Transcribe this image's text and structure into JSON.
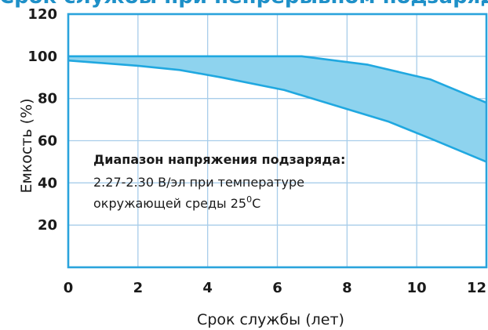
{
  "title": "Срок службы при непрерывном подзаряде",
  "chart_data": {
    "type": "area",
    "title": "Срок службы при непрерывном подзаряде",
    "xlabel": "Срок службы (лет)",
    "ylabel": "Емкость (%)",
    "xlim": [
      0,
      12
    ],
    "ylim": [
      0,
      120
    ],
    "x_ticks": [
      "0",
      "2",
      "4",
      "6",
      "8",
      "10",
      "12"
    ],
    "y_ticks": [
      "20",
      "40",
      "60",
      "80",
      "100",
      "120"
    ],
    "grid": true,
    "series": [
      {
        "x": [
          0,
          2,
          3.2,
          4.4,
          6.2,
          8,
          9.2,
          10.4,
          12
        ],
        "values": [
          98,
          95.5,
          93.5,
          90,
          84,
          75,
          69,
          61,
          50
        ]
      },
      {
        "x": [
          0,
          6.7,
          8.6,
          10.4,
          12
        ],
        "values": [
          100,
          100,
          96,
          89,
          78
        ]
      }
    ],
    "fill_color": "#8ed3ee",
    "line_color": "#20a8e0",
    "annotation": {
      "heading": "Диапазон напряжения подзаряда:",
      "line1": "2.27-2.30 В/эл при температуре",
      "line2": "окружающей среды 25",
      "sup": "0",
      "line2_end": "C"
    }
  },
  "colors": {
    "frame": "#2aa3dc",
    "grid": "#a8cdea",
    "title": "#1e90c8"
  }
}
